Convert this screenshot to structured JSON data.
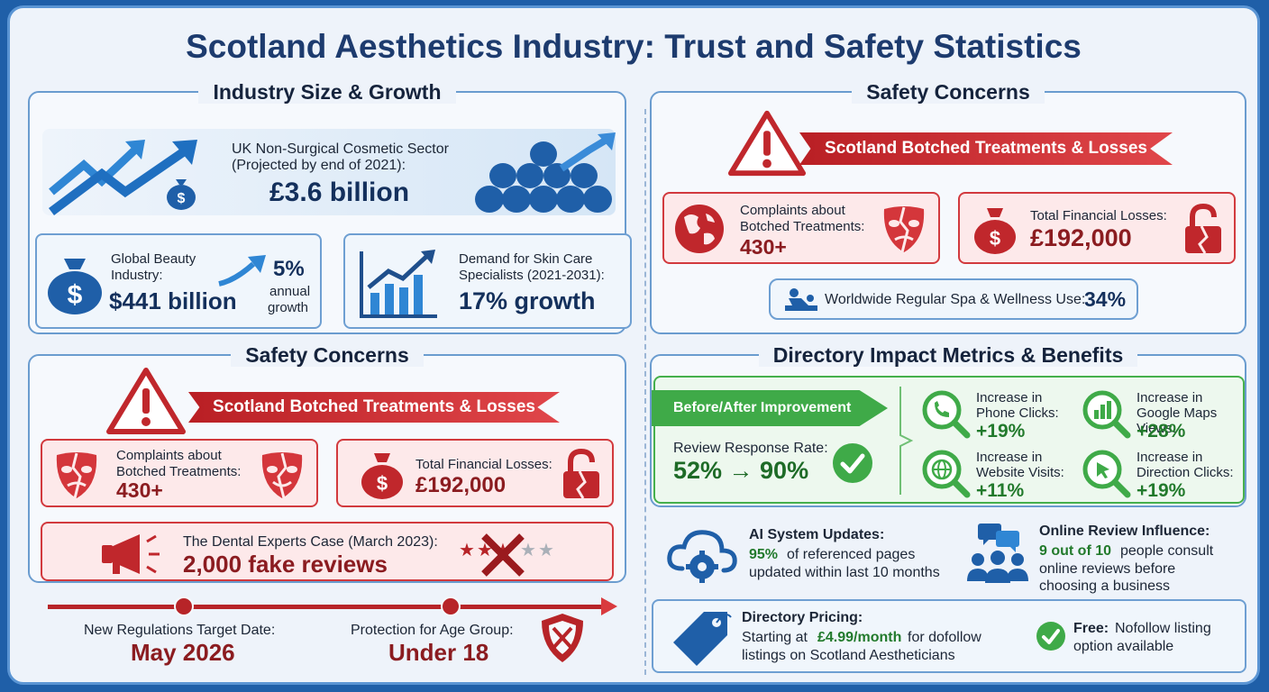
{
  "title": "Scotland Aesthetics Industry: Trust and Safety Statistics",
  "industry": {
    "heading": "Industry Size & Growth",
    "uk_label_1": "UK Non-Surgical Cosmetic Sector",
    "uk_label_2": "(Projected by end of 2021):",
    "uk_value": "£3.6 billion",
    "global_label_1": "Global Beauty",
    "global_label_2": "Industry:",
    "global_value": "$441 billion",
    "global_growth_value": "5%",
    "global_growth_label_1": "annual",
    "global_growth_label_2": "growth",
    "skin_label_1": "Demand for Skin Care",
    "skin_label_2": "Specialists (2021-2031):",
    "skin_value": "17% growth"
  },
  "safety_left": {
    "heading": "Safety Concerns",
    "ribbon": "Scotland Botched Treatments & Losses",
    "complaints_label_1": "Complaints about",
    "complaints_label_2": "Botched Treatments:",
    "complaints_value": "430+",
    "losses_label": "Total Financial Losses:",
    "losses_value": "£192,000",
    "case_label": "The Dental Experts Case (March 2023):",
    "case_value": "2,000 fake reviews",
    "reg_label": "New Regulations Target Date:",
    "reg_value": "May 2026",
    "age_label": "Protection for Age Group:",
    "age_value": "Under 18"
  },
  "safety_right": {
    "heading": "Safety Concerns",
    "ribbon": "Scotland Botched Treatments & Losses",
    "complaints_label_1": "Complaints about",
    "complaints_label_2": "Botched Treatments:",
    "complaints_value": "430+",
    "losses_label": "Total Financial Losses:",
    "losses_value": "£192,000",
    "spa_label": "Worldwide Regular Spa & Wellness Use:",
    "spa_value": "34%"
  },
  "directory": {
    "heading": "Directory Impact Metrics & Benefits",
    "arrow_label": "Before/After Improvement",
    "review_label": "Review Response Rate:",
    "review_value": "52% → 90%",
    "phone_label_1": "Increase in",
    "phone_label_2": "Phone Clicks:",
    "phone_value": "+19%",
    "maps_label_1": "Increase in",
    "maps_label_2": "Google Maps Views:",
    "maps_value": "+28%",
    "web_label_1": "Increase in",
    "web_label_2": "Website Visits:",
    "web_value": "+11%",
    "dir_label_1": "Increase in",
    "dir_label_2": "Direction Clicks:",
    "dir_value": "+19%"
  },
  "ai": {
    "title": "AI System Updates:",
    "pct": "95%",
    "line_1": "of referenced pages",
    "line_2": "updated within last 10 months"
  },
  "reviews": {
    "title": "Online Review Influence:",
    "highlight": "9 out of 10",
    "line_1": "people consult",
    "line_2": "online reviews before",
    "line_3": "choosing a business"
  },
  "pricing": {
    "title": "Directory Pricing:",
    "line_1a": "Starting at",
    "line_1b": "£4.99/month",
    "line_1c": "for dofollow",
    "line_2": "listings on Scotland Aestheticians",
    "free_title": "Free:",
    "free_1": "Nofollow listing",
    "free_2": "option available"
  },
  "colors": {
    "navy": "#1d3b6e",
    "red": "#b72428",
    "green": "#3faa48",
    "blue": "#2f6db5"
  }
}
